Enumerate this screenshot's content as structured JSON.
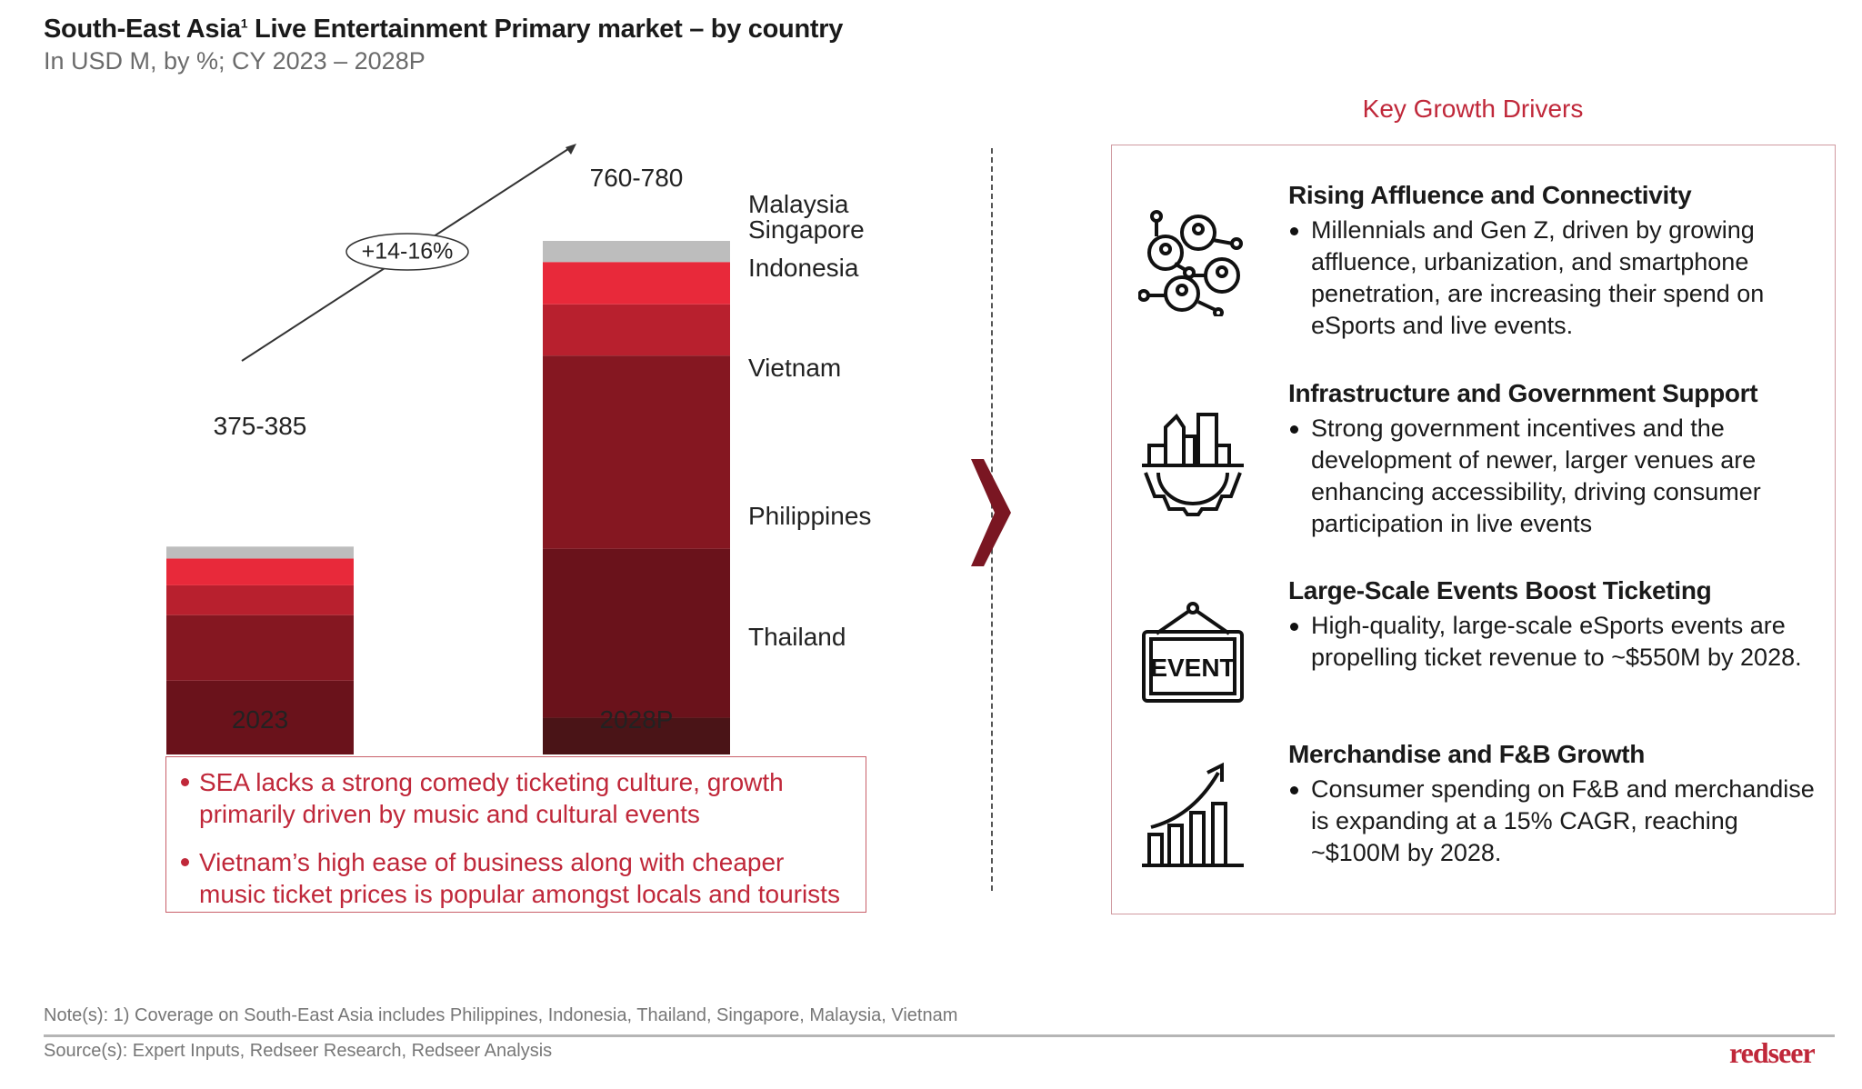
{
  "header": {
    "title": "South-East Asia",
    "title_sup": "1",
    "title_rest": " Live Entertainment Primary market – by country",
    "subtitle": "In USD M, by %; CY 2023 – 2028P"
  },
  "chart_data": {
    "type": "bar",
    "stacked": true,
    "categories": [
      "2023",
      "2028P"
    ],
    "totals_labels": [
      "375-385",
      "760-780"
    ],
    "totals_mid": [
      380,
      770
    ],
    "growth_label": "+14-16%",
    "series": [
      {
        "name": "Thailand",
        "color": "#4a1417",
        "values": [
          29,
          21
        ]
      },
      {
        "name": "Philippines",
        "color": "#6a121b",
        "values": [
          26,
          28
        ]
      },
      {
        "name": "Vietnam",
        "color": "#851721",
        "values": [
          22,
          32
        ]
      },
      {
        "name": "Indonesia",
        "color": "#b8202e",
        "values": [
          10,
          8.5
        ]
      },
      {
        "name": "Singapore",
        "color": "#e8293a",
        "values": [
          9,
          7
        ]
      },
      {
        "name": "Malaysia",
        "color": "#bdbdbd",
        "values": [
          4,
          3.5
        ]
      }
    ],
    "unit": "%",
    "axis_break": true,
    "grid": false,
    "legend_placement": "right of 2028P bar"
  },
  "notes_box": {
    "items": [
      "SEA lacks a strong comedy ticketing culture, growth primarily driven by music and cultural events",
      "Vietnam’s high ease of business along with cheaper music ticket prices is popular amongst locals and tourists"
    ],
    "color": "#c0283a"
  },
  "drivers": {
    "title": "Key Growth Drivers",
    "items": [
      {
        "icon": "network-people-icon",
        "heading": "Rising Affluence and Connectivity",
        "text": "Millennials and Gen Z, driven by growing affluence, urbanization, and smartphone penetration, are increasing their spend on eSports and live events."
      },
      {
        "icon": "city-gear-icon",
        "heading": "Infrastructure and Government Support",
        "text": "Strong government incentives and the development of newer, larger venues are enhancing accessibility, driving consumer participation in live events"
      },
      {
        "icon": "event-sign-icon",
        "icon_text": "EVENT",
        "heading": "Large-Scale Events Boost Ticketing",
        "text": "High-quality, large-scale eSports events are propelling ticket revenue to ~$550M by 2028."
      },
      {
        "icon": "growth-chart-icon",
        "heading": "Merchandise and F&B Growth",
        "text": "Consumer spending on F&B and merchandise is expanding at a 15% CAGR, reaching ~$100M by 2028."
      }
    ]
  },
  "footer": {
    "note": "Note(s): 1) Coverage on South-East Asia includes Philippines, Indonesia, Thailand, Singapore, Malaysia, Vietnam",
    "source": "Source(s): Expert Inputs, Redseer Research, Redseer Analysis",
    "logo": "redseer"
  }
}
